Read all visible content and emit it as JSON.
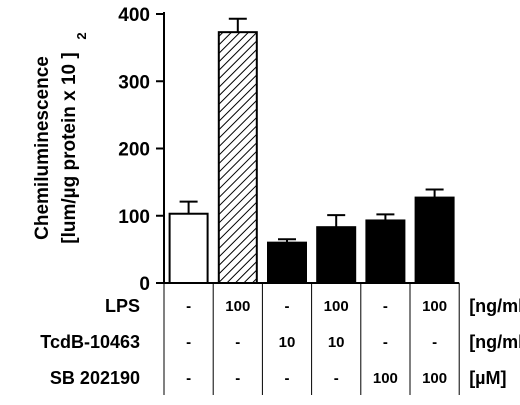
{
  "chart_data": {
    "type": "bar",
    "ylabel_line1": "Chemiluminescence",
    "ylabel_line2": "[lum/µg protein x 10 ]",
    "ylabel_superscript": "2",
    "ylim": [
      0,
      400
    ],
    "yticks": [
      "0",
      "100",
      "200",
      "300",
      "400"
    ],
    "ytick_values": [
      0,
      100,
      200,
      300,
      400
    ],
    "values": [
      103,
      373,
      60,
      83,
      93,
      127
    ],
    "errors": [
      18,
      20,
      5,
      18,
      9,
      12
    ],
    "bar_fills": [
      "white",
      "hatched",
      "black",
      "black",
      "black",
      "black"
    ],
    "conditions": [
      {
        "label": "LPS",
        "unit": "[ng/ml]",
        "cells": [
          "-",
          "100",
          "-",
          "100",
          "-",
          "100"
        ]
      },
      {
        "label": "TcdB-10463",
        "unit": "[ng/ml]",
        "cells": [
          "-",
          "-",
          "10",
          "10",
          "-",
          "-"
        ]
      },
      {
        "label": "SB 202190",
        "unit": "[µM]",
        "cells": [
          "-",
          "-",
          "-",
          "-",
          "100",
          "100"
        ]
      }
    ]
  }
}
